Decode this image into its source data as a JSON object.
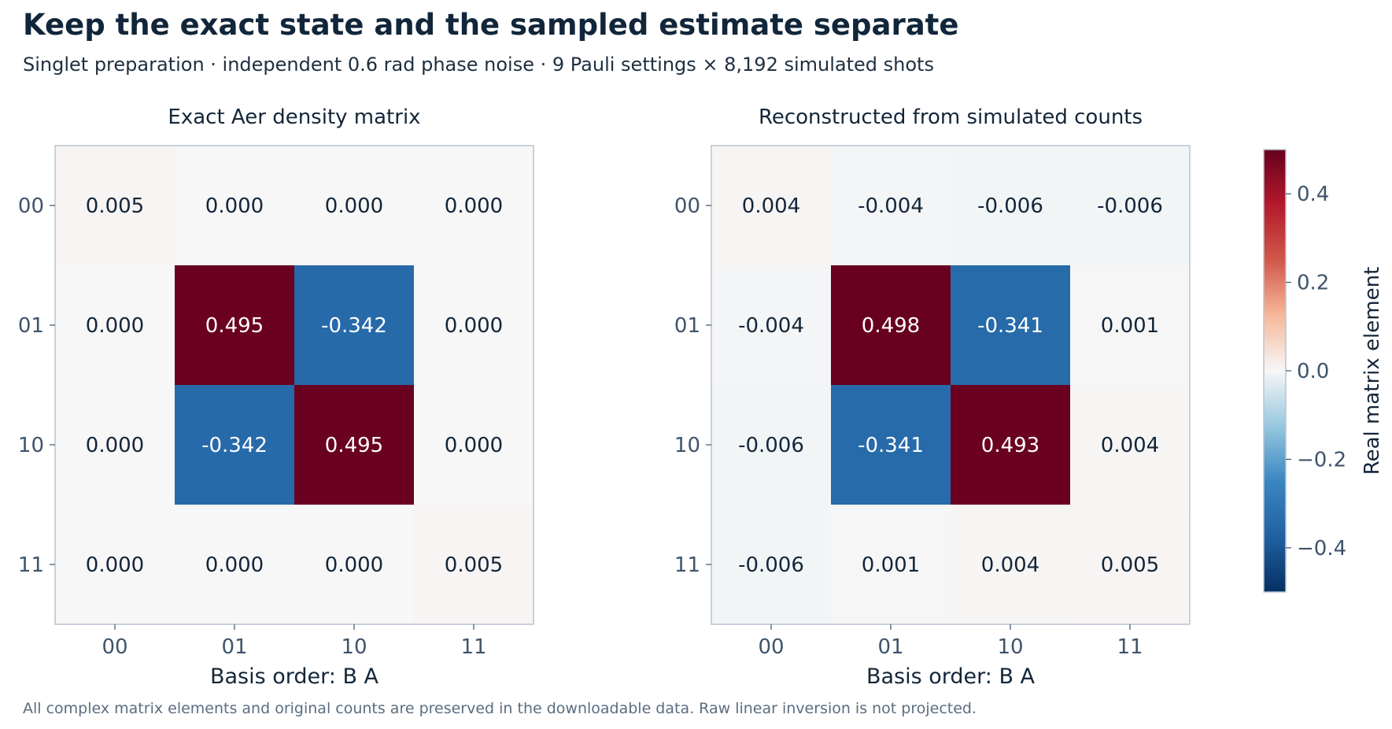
{
  "header": {
    "title": "Keep the exact state and the sampled estimate separate",
    "subtitle": "Singlet preparation · independent 0.6 rad phase noise · 9 Pauli settings × 8,192 simulated shots"
  },
  "footer": {
    "note": "All complex matrix elements and original counts are preserved in the downloadable data. Raw linear inversion is not projected."
  },
  "colors": {
    "negative": "#053061",
    "mid_negative": "#3480c0",
    "zero": "#f7f7f7",
    "mid_positive": "#e08566",
    "positive": "#67001f",
    "axis_border": "#b8c4d2",
    "tick_text": "#3f546b"
  },
  "chart_data": [
    {
      "type": "heatmap",
      "title": "Exact Aer density matrix",
      "xlabel": "Basis order: B A",
      "x_categories": [
        "00",
        "01",
        "10",
        "11"
      ],
      "y_categories": [
        "00",
        "01",
        "10",
        "11"
      ],
      "values": [
        [
          0.005,
          0.0,
          0.0,
          0.0
        ],
        [
          0.0,
          0.495,
          -0.342,
          0.0
        ],
        [
          0.0,
          -0.342,
          0.495,
          0.0
        ],
        [
          0.0,
          0.0,
          0.0,
          0.005
        ]
      ],
      "labels": [
        [
          "0.005",
          "0.000",
          "0.000",
          "0.000"
        ],
        [
          "0.000",
          "0.495",
          "-0.342",
          "0.000"
        ],
        [
          "0.000",
          "-0.342",
          "0.495",
          "0.000"
        ],
        [
          "0.000",
          "0.000",
          "0.000",
          "0.005"
        ]
      ]
    },
    {
      "type": "heatmap",
      "title": "Reconstructed from simulated counts",
      "xlabel": "Basis order: B A",
      "x_categories": [
        "00",
        "01",
        "10",
        "11"
      ],
      "y_categories": [
        "00",
        "01",
        "10",
        "11"
      ],
      "values": [
        [
          0.004,
          -0.004,
          -0.006,
          -0.006
        ],
        [
          -0.004,
          0.498,
          -0.341,
          0.001
        ],
        [
          -0.006,
          -0.341,
          0.493,
          0.004
        ],
        [
          -0.006,
          0.001,
          0.004,
          0.005
        ]
      ],
      "labels": [
        [
          "0.004",
          "-0.004",
          "-0.006",
          "-0.006"
        ],
        [
          "-0.004",
          "0.498",
          "-0.341",
          "0.001"
        ],
        [
          "-0.006",
          "-0.341",
          "0.493",
          "0.004"
        ],
        [
          "-0.006",
          "0.001",
          "0.004",
          "0.005"
        ]
      ]
    }
  ],
  "colorbar": {
    "label": "Real matrix element",
    "vmin": -0.5,
    "vmax": 0.5,
    "ticks": [
      0.4,
      0.2,
      0.0,
      -0.2,
      -0.4
    ],
    "tick_labels": [
      "0.4",
      "0.2",
      "0.0",
      "−0.2",
      "−0.4"
    ]
  }
}
